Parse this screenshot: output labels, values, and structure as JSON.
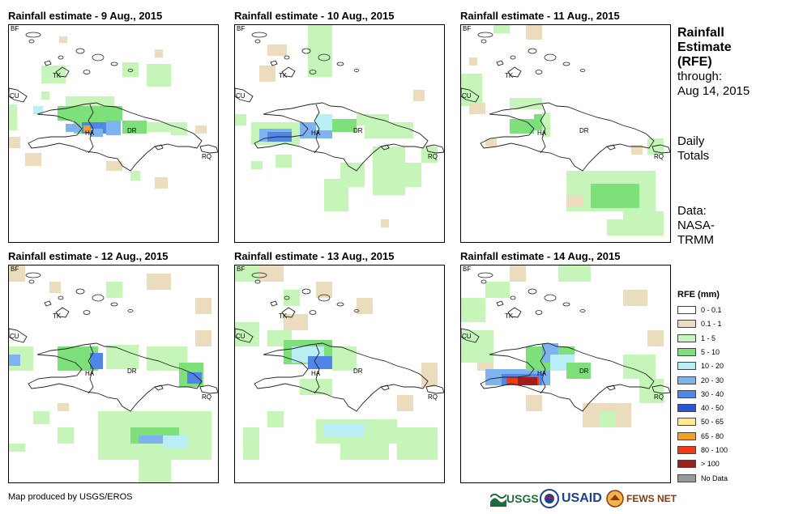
{
  "panels": [
    {
      "title": "Rainfall estimate - 9 Aug., 2015"
    },
    {
      "title": "Rainfall estimate - 10 Aug., 2015"
    },
    {
      "title": "Rainfall estimate - 11 Aug., 2015"
    },
    {
      "title": "Rainfall estimate - 12 Aug., 2015"
    },
    {
      "title": "Rainfall estimate - 13 Aug., 2015"
    },
    {
      "title": "Rainfall estimate - 14 Aug., 2015"
    }
  ],
  "map_labels": {
    "bf": "BF",
    "tk": "TK",
    "cu": "CU",
    "ha": "HA",
    "dr": "DR",
    "rq": "RQ"
  },
  "sidebar": {
    "title_1": "Rainfall",
    "title_2": "Estimate",
    "title_3": "(RFE)",
    "through_1": "through:",
    "through_2": "Aug 14, 2015",
    "daily_1": "Daily",
    "daily_2": "Totals",
    "data_1": "Data:",
    "data_2": "NASA-",
    "data_3": "TRMM"
  },
  "legend": {
    "title": "RFE (mm)",
    "items": [
      {
        "label": "0 - 0.1",
        "color": "#ffffff"
      },
      {
        "label": "0.1 - 1",
        "color": "#ecdcbe"
      },
      {
        "label": "1 - 5",
        "color": "#c5f5b8"
      },
      {
        "label": "5 - 10",
        "color": "#7de07a"
      },
      {
        "label": "10 - 20",
        "color": "#b9eef5"
      },
      {
        "label": "20 - 30",
        "color": "#7fb3f0"
      },
      {
        "label": "30 - 40",
        "color": "#4f86e8"
      },
      {
        "label": "40 - 50",
        "color": "#2a55d6"
      },
      {
        "label": "50 - 65",
        "color": "#ffe98a"
      },
      {
        "label": "65 - 80",
        "color": "#f5a023"
      },
      {
        "label": "80 - 100",
        "color": "#f03c14"
      },
      {
        "label": "> 100",
        "color": "#a01e1e"
      },
      {
        "label": "No Data",
        "color": "#999999"
      }
    ]
  },
  "credit": "Map produced by USGS/EROS",
  "logos": {
    "usgs": "USGS",
    "usaid": "USAID",
    "fews": "FEWS NET"
  }
}
